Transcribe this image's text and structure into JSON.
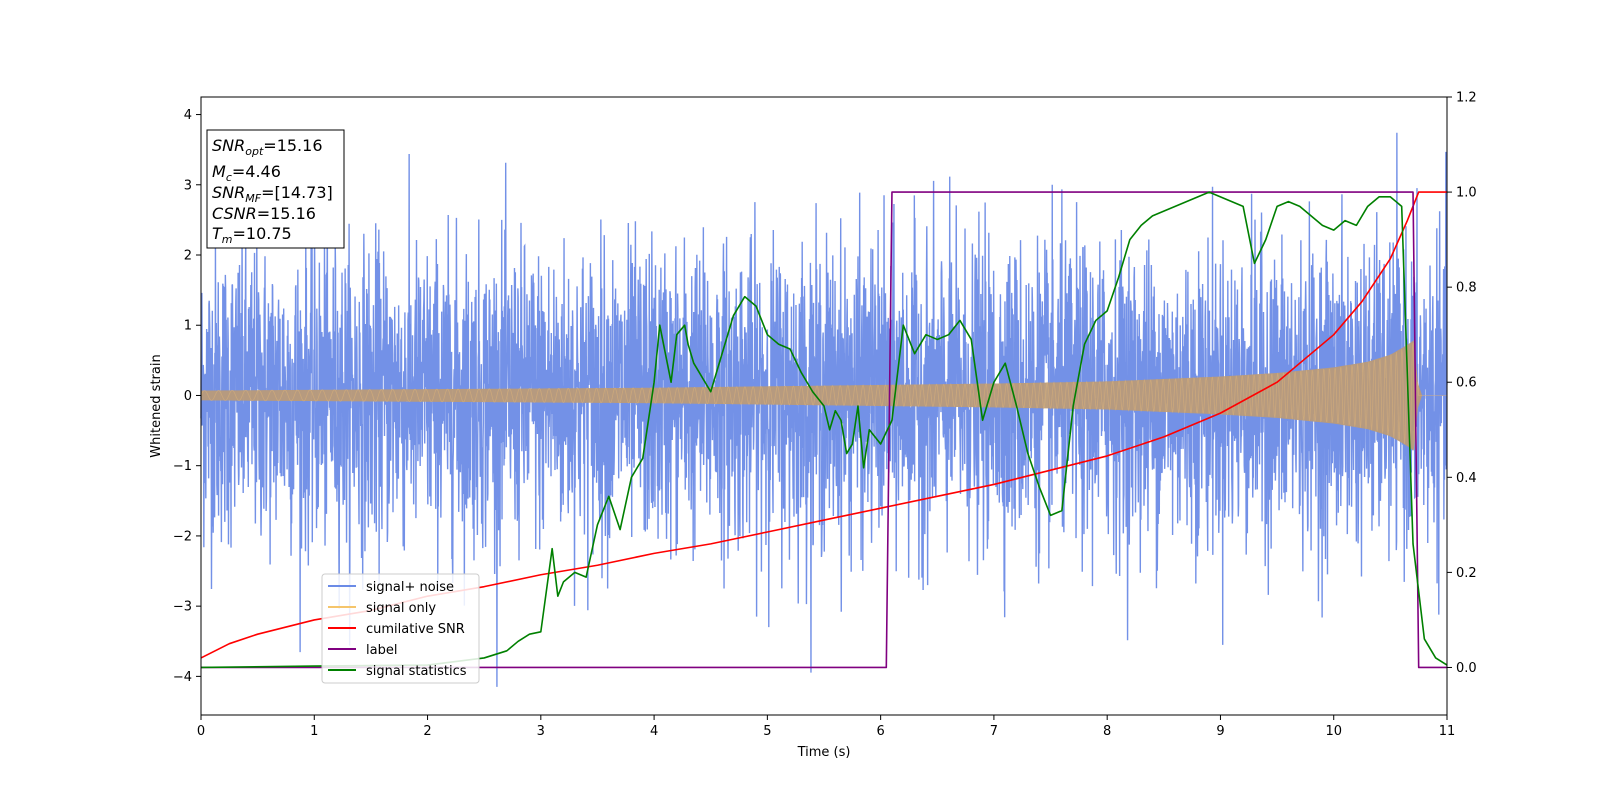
{
  "chart_data": {
    "type": "line",
    "xlabel": "Time (s)",
    "ylabel": "Whitened strain",
    "xlim": [
      0,
      11
    ],
    "ylim_left": [
      -4.55,
      4.25
    ],
    "ylim_right": [
      -0.1,
      1.2
    ],
    "x_ticks": [
      0,
      1,
      2,
      3,
      4,
      5,
      6,
      7,
      8,
      9,
      10,
      11
    ],
    "y_ticks_left": [
      -4,
      -3,
      -2,
      -1,
      0,
      1,
      2,
      3,
      4
    ],
    "y_ticks_right": [
      0.0,
      0.2,
      0.4,
      0.6,
      0.8,
      1.0,
      1.2
    ],
    "grid": false,
    "legend_position": "lower-left",
    "annotation": {
      "lines": [
        {
          "base": "SNR",
          "sub": "opt",
          "value": "=15.16"
        },
        {
          "base": "M",
          "sub": "c",
          "value": "=4.46"
        },
        {
          "base": "SNR",
          "sub": "MF",
          "value": "=[14.73]"
        },
        {
          "base": "CSNR",
          "sub": "",
          "value": "=15.16"
        },
        {
          "base": "T",
          "sub": "m",
          "value": "=10.75"
        }
      ]
    },
    "series": [
      {
        "name": "signal+ noise",
        "axis": "left",
        "color": "#6b8be6",
        "style": "noise",
        "sigma": 1.0,
        "t_end": 10.75
      },
      {
        "name": "signal only",
        "axis": "left",
        "color": "#f5c56b",
        "overlap_color": "#b99b79",
        "style": "chirp",
        "envelope_x": [
          0,
          1,
          2,
          3,
          4,
          5,
          6,
          7,
          8,
          9,
          9.5,
          10,
          10.3,
          10.5,
          10.65,
          10.72,
          10.75,
          11
        ],
        "envelope_y": [
          0.07,
          0.08,
          0.09,
          0.1,
          0.11,
          0.13,
          0.15,
          0.17,
          0.2,
          0.27,
          0.32,
          0.4,
          0.48,
          0.58,
          0.72,
          0.8,
          0.0,
          0.0
        ]
      },
      {
        "name": "cumilative SNR",
        "axis": "right",
        "color": "#ff0000",
        "x": [
          0,
          0.25,
          0.5,
          1,
          1.5,
          2,
          2.5,
          3,
          3.5,
          4,
          4.5,
          5,
          5.5,
          6,
          6.5,
          7,
          7.5,
          8,
          8.5,
          9,
          9.5,
          10,
          10.25,
          10.5,
          10.65,
          10.75,
          11
        ],
        "y": [
          0.02,
          0.05,
          0.07,
          0.1,
          0.12,
          0.15,
          0.17,
          0.195,
          0.215,
          0.24,
          0.26,
          0.285,
          0.31,
          0.335,
          0.36,
          0.385,
          0.415,
          0.445,
          0.485,
          0.535,
          0.6,
          0.7,
          0.77,
          0.86,
          0.94,
          1.0,
          1.0
        ]
      },
      {
        "name": "label",
        "axis": "right",
        "color": "#800080",
        "x": [
          0,
          6.05,
          6.1,
          10.7,
          10.75,
          11
        ],
        "y": [
          0,
          0,
          1,
          1,
          0,
          0
        ]
      },
      {
        "name": "signal statistics",
        "axis": "right",
        "color": "#008000",
        "x": [
          0,
          1,
          2,
          2.5,
          2.7,
          2.8,
          2.9,
          3.0,
          3.1,
          3.15,
          3.2,
          3.3,
          3.4,
          3.5,
          3.6,
          3.7,
          3.8,
          3.9,
          4.0,
          4.05,
          4.15,
          4.2,
          4.27,
          4.3,
          4.35,
          4.4,
          4.45,
          4.5,
          4.55,
          4.6,
          4.7,
          4.8,
          4.9,
          5.0,
          5.1,
          5.2,
          5.3,
          5.4,
          5.5,
          5.55,
          5.6,
          5.65,
          5.7,
          5.75,
          5.8,
          5.85,
          5.9,
          6.0,
          6.1,
          6.2,
          6.3,
          6.4,
          6.5,
          6.6,
          6.7,
          6.8,
          6.9,
          7.0,
          7.1,
          7.2,
          7.3,
          7.4,
          7.5,
          7.6,
          7.7,
          7.8,
          7.9,
          8.0,
          8.1,
          8.2,
          8.3,
          8.4,
          8.5,
          8.6,
          8.7,
          8.8,
          8.9,
          9.0,
          9.1,
          9.2,
          9.3,
          9.4,
          9.5,
          9.6,
          9.7,
          9.8,
          9.9,
          10.0,
          10.1,
          10.2,
          10.3,
          10.4,
          10.5,
          10.6,
          10.7,
          10.8,
          10.9,
          11.0
        ],
        "y": [
          0.0,
          0.003,
          0.005,
          0.02,
          0.035,
          0.055,
          0.07,
          0.075,
          0.25,
          0.15,
          0.18,
          0.2,
          0.19,
          0.3,
          0.36,
          0.29,
          0.4,
          0.44,
          0.6,
          0.72,
          0.6,
          0.7,
          0.72,
          0.68,
          0.64,
          0.62,
          0.6,
          0.58,
          0.62,
          0.66,
          0.74,
          0.78,
          0.76,
          0.7,
          0.68,
          0.67,
          0.62,
          0.58,
          0.55,
          0.5,
          0.54,
          0.52,
          0.45,
          0.47,
          0.55,
          0.42,
          0.5,
          0.47,
          0.52,
          0.72,
          0.66,
          0.7,
          0.69,
          0.7,
          0.73,
          0.69,
          0.52,
          0.6,
          0.64,
          0.55,
          0.45,
          0.38,
          0.32,
          0.33,
          0.55,
          0.68,
          0.73,
          0.75,
          0.82,
          0.9,
          0.93,
          0.95,
          0.96,
          0.97,
          0.98,
          0.99,
          1.0,
          0.99,
          0.98,
          0.97,
          0.85,
          0.9,
          0.97,
          0.98,
          0.97,
          0.95,
          0.93,
          0.92,
          0.94,
          0.93,
          0.97,
          0.99,
          0.99,
          0.97,
          0.26,
          0.06,
          0.02,
          0.005
        ]
      }
    ]
  }
}
